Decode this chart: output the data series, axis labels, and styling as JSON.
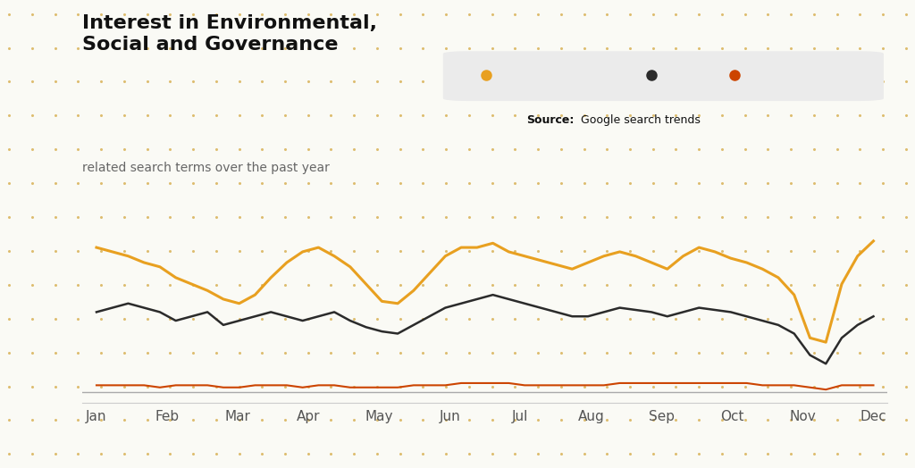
{
  "title_bold": "Interest in Environmental,\nSocial and Governance",
  "title_sub": "related search terms over the past year",
  "source_label": "Source:",
  "source_text": "Google search trends",
  "background_color": "#fafaf5",
  "dot_color": "#d4a843",
  "months": [
    "Jan",
    "Feb",
    "Mar",
    "Apr",
    "May",
    "Jun",
    "Jul",
    "Aug",
    "Sep",
    "Oct",
    "Nov",
    "Dec"
  ],
  "env": [
    72,
    70,
    68,
    65,
    63,
    58,
    55,
    52,
    48,
    46,
    50,
    58,
    65,
    70,
    72,
    68,
    63,
    55,
    47,
    46,
    52,
    60,
    68,
    72,
    72,
    74,
    70,
    68,
    66,
    64,
    62,
    65,
    68,
    70,
    68,
    65,
    62,
    68,
    72,
    70,
    67,
    65,
    62,
    58,
    50,
    30,
    28,
    55,
    68,
    75
  ],
  "soc": [
    42,
    44,
    46,
    44,
    42,
    38,
    40,
    42,
    36,
    38,
    40,
    42,
    40,
    38,
    40,
    42,
    38,
    35,
    33,
    32,
    36,
    40,
    44,
    46,
    48,
    50,
    48,
    46,
    44,
    42,
    40,
    40,
    42,
    44,
    43,
    42,
    40,
    42,
    44,
    43,
    42,
    40,
    38,
    36,
    32,
    22,
    18,
    30,
    36,
    40
  ],
  "gov": [
    8,
    8,
    8,
    8,
    7,
    8,
    8,
    8,
    7,
    7,
    8,
    8,
    8,
    7,
    8,
    8,
    7,
    7,
    7,
    7,
    8,
    8,
    8,
    9,
    9,
    9,
    9,
    8,
    8,
    8,
    8,
    8,
    8,
    9,
    9,
    9,
    9,
    9,
    9,
    9,
    9,
    9,
    8,
    8,
    8,
    7,
    6,
    8,
    8,
    8
  ],
  "env_color": "#e8a020",
  "social_color": "#2b2b2b",
  "gov_color": "#cc4400",
  "baseline_color": "#aaaaaa",
  "legend_bg": "#ebebeb"
}
